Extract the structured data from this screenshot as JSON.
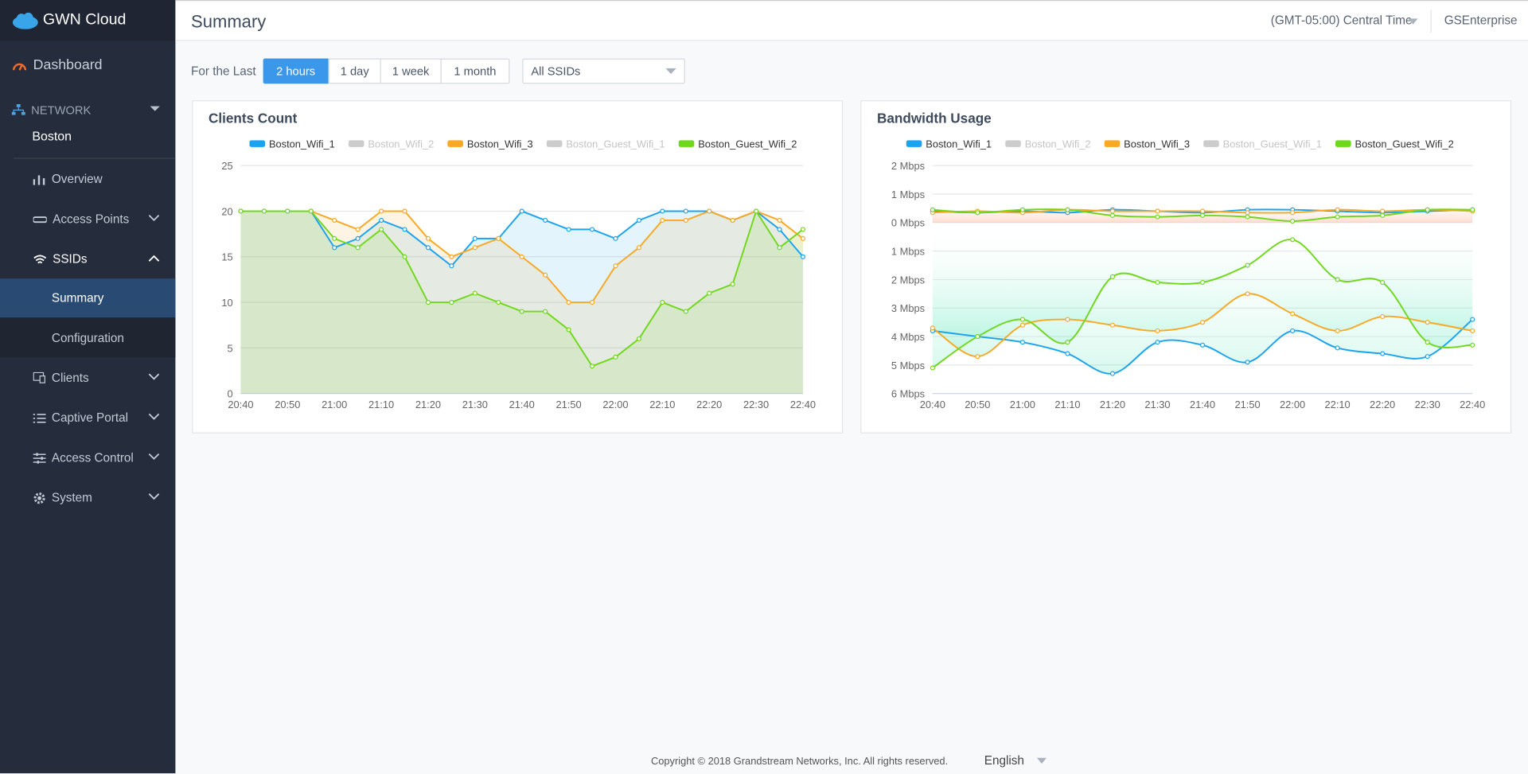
{
  "sidebar": {
    "brand": "GWN Cloud",
    "dashboard": "Dashboard",
    "network": "NETWORK",
    "site": "Boston",
    "overview": "Overview",
    "access_points": "Access Points",
    "ssids": "SSIDs",
    "summary": "Summary",
    "configuration": "Configuration",
    "clients": "Clients",
    "captive_portal": "Captive Portal",
    "access_control": "Access Control",
    "system": "System"
  },
  "header": {
    "title": "Summary",
    "timezone": "(GMT-05:00) Central Time",
    "user": "GSEnterprise"
  },
  "filters": {
    "label": "For the Last",
    "ranges": [
      "2 hours",
      "1 day",
      "1 week",
      "1 month"
    ],
    "ssid": "All SSIDs"
  },
  "chart_data": [
    {
      "type": "line",
      "title": "Clients Count",
      "smooth": false,
      "categories": [
        "20:40",
        null,
        "20:50",
        null,
        "21:00",
        null,
        "21:10",
        null,
        "21:20",
        null,
        "21:30",
        null,
        "21:40",
        null,
        "21:50",
        null,
        "22:00",
        null,
        "22:10",
        null,
        "22:20",
        null,
        "22:30",
        null,
        "22:40"
      ],
      "ylim": [
        0,
        25
      ],
      "yticks": [
        0,
        5,
        10,
        15,
        20,
        25
      ],
      "grid": true,
      "series": [
        {
          "name": "Boston_Wifi_1",
          "color": "#1ca3f0",
          "values": [
            20,
            20,
            20,
            20,
            16,
            17,
            19,
            18,
            16,
            14,
            17,
            17,
            20,
            19,
            18,
            18,
            17,
            19,
            20,
            20,
            20,
            19,
            20,
            18,
            15
          ]
        },
        {
          "name": "Boston_Wifi_2",
          "color": "#cccccc",
          "hidden": true
        },
        {
          "name": "Boston_Wifi_3",
          "color": "#f8a823",
          "values": [
            20,
            20,
            20,
            20,
            19,
            18,
            20,
            20,
            17,
            15,
            16,
            17,
            15,
            13,
            10,
            10,
            14,
            16,
            19,
            19,
            20,
            19,
            20,
            19,
            17
          ]
        },
        {
          "name": "Boston_Guest_Wifi_1",
          "color": "#cccccc",
          "hidden": true
        },
        {
          "name": "Boston_Guest_Wifi_2",
          "color": "#70d81c",
          "values": [
            20,
            20,
            20,
            20,
            17,
            16,
            18,
            15,
            10,
            10,
            11,
            10,
            9,
            9,
            7,
            3,
            4,
            6,
            10,
            9,
            11,
            12,
            20,
            16,
            18
          ]
        }
      ]
    },
    {
      "type": "line",
      "title": "Bandwidth Usage",
      "smooth": true,
      "categories": [
        "20:40",
        "20:50",
        "21:00",
        "21:10",
        "21:20",
        "21:30",
        "21:40",
        "21:50",
        "22:00",
        "22:10",
        "22:20",
        "22:30",
        "22:40"
      ],
      "ylim": [
        -6,
        2
      ],
      "yticks": [
        {
          "value": 2,
          "label": "2 Mbps"
        },
        {
          "value": 1,
          "label": "1 Mbps"
        },
        {
          "value": 0,
          "label": "0 Mbps"
        },
        {
          "value": -1,
          "label": "1 Mbps"
        },
        {
          "value": -2,
          "label": "2 Mbps"
        },
        {
          "value": -3,
          "label": "3 Mbps"
        },
        {
          "value": -4,
          "label": "4 Mbps"
        },
        {
          "value": -5,
          "label": "5 Mbps"
        },
        {
          "value": -6,
          "label": "6 Mbps"
        }
      ],
      "grid": true,
      "series": [
        {
          "name": "Boston_Wifi_1",
          "color": "#1ca3f0",
          "upload": [
            0.4,
            0.35,
            0.4,
            0.35,
            0.45,
            0.4,
            0.35,
            0.45,
            0.45,
            0.4,
            0.35,
            0.4,
            0.45
          ],
          "download": [
            -3.8,
            -4.0,
            -4.2,
            -4.6,
            -5.3,
            -4.2,
            -4.3,
            -4.9,
            -3.8,
            -4.4,
            -4.6,
            -4.7,
            -3.4
          ]
        },
        {
          "name": "Boston_Wifi_2",
          "color": "#cccccc",
          "hidden": true
        },
        {
          "name": "Boston_Wifi_3",
          "color": "#f8a823",
          "upload": [
            0.35,
            0.4,
            0.35,
            0.45,
            0.4,
            0.4,
            0.4,
            0.35,
            0.35,
            0.45,
            0.4,
            0.45,
            0.4
          ],
          "download": [
            -3.7,
            -4.7,
            -3.6,
            -3.4,
            -3.6,
            -3.8,
            -3.5,
            -2.5,
            -3.2,
            -3.8,
            -3.3,
            -3.5,
            -3.8
          ]
        },
        {
          "name": "Boston_Guest_Wifi_1",
          "color": "#cccccc",
          "hidden": true
        },
        {
          "name": "Boston_Guest_Wifi_2",
          "color": "#70d81c",
          "upload": [
            0.45,
            0.35,
            0.45,
            0.45,
            0.25,
            0.2,
            0.25,
            0.2,
            0.05,
            0.2,
            0.25,
            0.45,
            0.45
          ],
          "download": [
            -5.1,
            -4.0,
            -3.4,
            -4.2,
            -1.9,
            -2.1,
            -2.1,
            -1.5,
            -0.6,
            -2.0,
            -2.1,
            -4.2,
            -4.3
          ]
        }
      ]
    }
  ],
  "footer": {
    "copyright": "Copyright © 2018 Grandstream Networks, Inc. All rights reserved.",
    "language": "English"
  }
}
